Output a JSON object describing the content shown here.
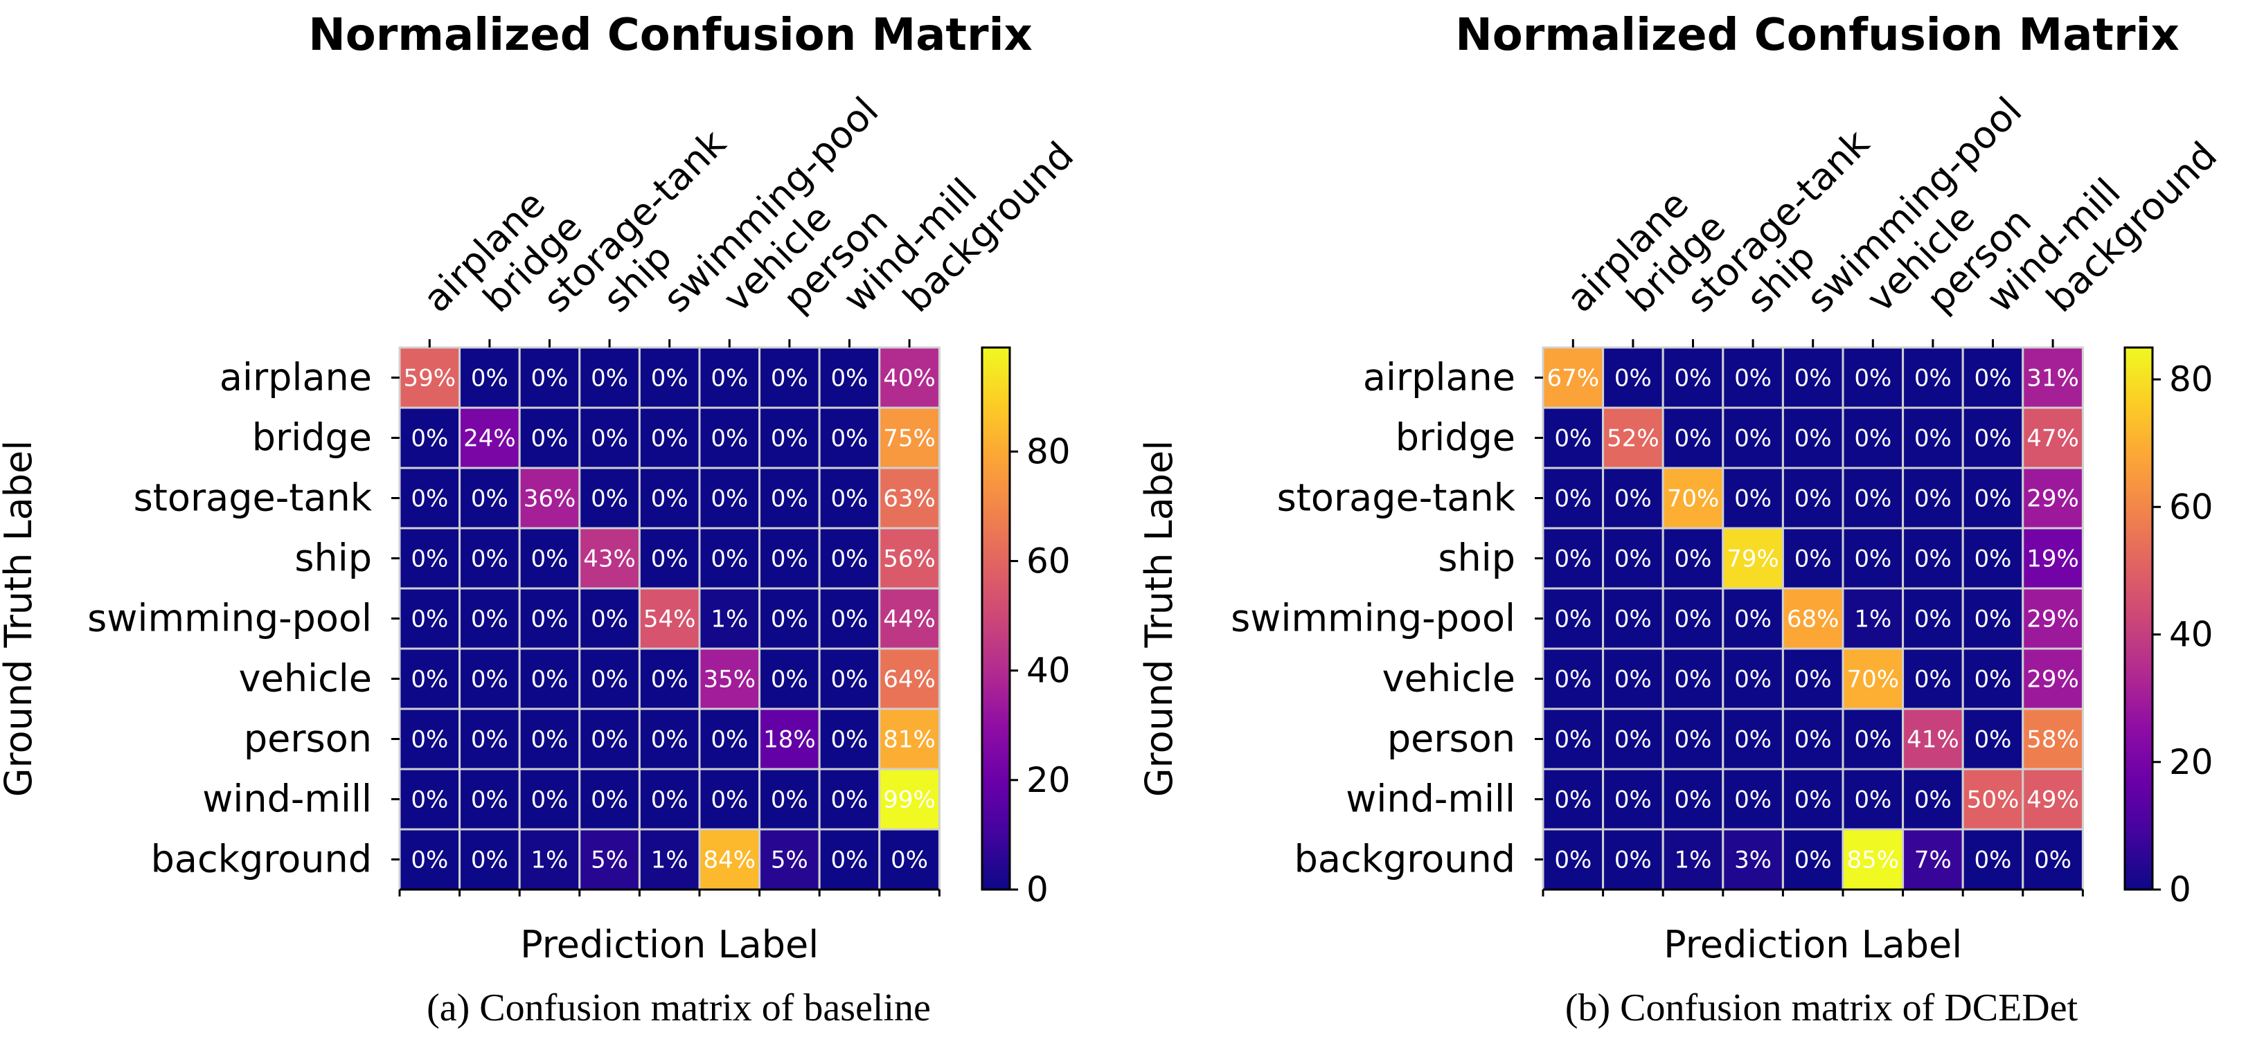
{
  "chart_data": [
    {
      "type": "heatmap",
      "title": "Normalized Confusion Matrix",
      "xlabel": "Prediction Label",
      "ylabel": "Ground Truth Label",
      "caption": "(a) Confusion matrix of baseline",
      "x_categories": [
        "airplane",
        "bridge",
        "storage-tank",
        "ship",
        "swimming-pool",
        "vehicle",
        "person",
        "wind-mill",
        "background"
      ],
      "y_categories": [
        "airplane",
        "bridge",
        "storage-tank",
        "ship",
        "swimming-pool",
        "vehicle",
        "person",
        "wind-mill",
        "background"
      ],
      "values": [
        [
          59,
          0,
          0,
          0,
          0,
          0,
          0,
          0,
          40
        ],
        [
          0,
          24,
          0,
          0,
          0,
          0,
          0,
          0,
          75
        ],
        [
          0,
          0,
          36,
          0,
          0,
          0,
          0,
          0,
          63
        ],
        [
          0,
          0,
          0,
          43,
          0,
          0,
          0,
          0,
          56
        ],
        [
          0,
          0,
          0,
          0,
          54,
          1,
          0,
          0,
          44
        ],
        [
          0,
          0,
          0,
          0,
          0,
          35,
          0,
          0,
          64
        ],
        [
          0,
          0,
          0,
          0,
          0,
          0,
          18,
          0,
          81
        ],
        [
          0,
          0,
          0,
          0,
          0,
          0,
          0,
          0,
          99
        ],
        [
          0,
          0,
          1,
          5,
          1,
          84,
          5,
          0,
          0
        ]
      ],
      "value_suffix": "%",
      "colormap": "plasma",
      "colorbar": {
        "min": 0,
        "max": 99,
        "ticks": [
          0,
          20,
          40,
          60,
          80
        ]
      }
    },
    {
      "type": "heatmap",
      "title": "Normalized Confusion Matrix",
      "xlabel": "Prediction Label",
      "ylabel": "Ground Truth Label",
      "caption": "(b) Confusion matrix of DCEDet",
      "x_categories": [
        "airplane",
        "bridge",
        "storage-tank",
        "ship",
        "swimming-pool",
        "vehicle",
        "person",
        "wind-mill",
        "background"
      ],
      "y_categories": [
        "airplane",
        "bridge",
        "storage-tank",
        "ship",
        "swimming-pool",
        "vehicle",
        "person",
        "wind-mill",
        "background"
      ],
      "values": [
        [
          67,
          0,
          0,
          0,
          0,
          0,
          0,
          0,
          31
        ],
        [
          0,
          52,
          0,
          0,
          0,
          0,
          0,
          0,
          47
        ],
        [
          0,
          0,
          70,
          0,
          0,
          0,
          0,
          0,
          29
        ],
        [
          0,
          0,
          0,
          79,
          0,
          0,
          0,
          0,
          19
        ],
        [
          0,
          0,
          0,
          0,
          68,
          1,
          0,
          0,
          29
        ],
        [
          0,
          0,
          0,
          0,
          0,
          70,
          0,
          0,
          29
        ],
        [
          0,
          0,
          0,
          0,
          0,
          0,
          41,
          0,
          58
        ],
        [
          0,
          0,
          0,
          0,
          0,
          0,
          0,
          50,
          49
        ],
        [
          0,
          0,
          1,
          3,
          0,
          85,
          7,
          0,
          0
        ]
      ],
      "value_suffix": "%",
      "colormap": "plasma",
      "colorbar": {
        "min": 0,
        "max": 85,
        "ticks": [
          0,
          20,
          40,
          60,
          80
        ]
      }
    }
  ]
}
